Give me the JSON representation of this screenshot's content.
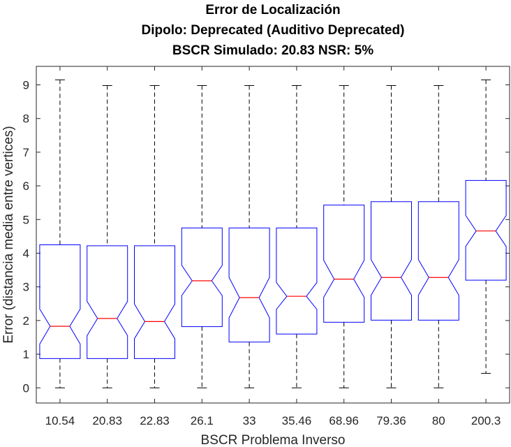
{
  "chart_data": {
    "type": "boxplot",
    "title": [
      "Error de Localización",
      "Dipolo: Deprecated (Auditivo Deprecated)",
      "BSCR Simulado: 20.83 NSR: 5%"
    ],
    "xlabel": "BSCR Problema Inverso",
    "ylabel": "Error (distancia media entre vertices)",
    "categories": [
      "10.54",
      "20.83",
      "22.83",
      "26.1",
      "33",
      "35.46",
      "68.96",
      "79.36",
      "80",
      "200.3"
    ],
    "ylim": [
      -0.45,
      9.55
    ],
    "yticks": [
      0,
      1,
      2,
      3,
      4,
      5,
      6,
      7,
      8,
      9
    ],
    "grid": false,
    "notched": true,
    "box_color": "#0000ff",
    "median_color": "#ff0000",
    "whisker_color": "#000000",
    "boxes": [
      {
        "min": 0.0,
        "q1": 0.87,
        "median": 1.83,
        "q3": 4.25,
        "max": 9.15,
        "notch_low": 1.3,
        "notch_high": 2.34
      },
      {
        "min": 0.0,
        "q1": 0.87,
        "median": 2.06,
        "q3": 4.22,
        "max": 8.98,
        "notch_low": 1.55,
        "notch_high": 2.57
      },
      {
        "min": 0.0,
        "q1": 0.87,
        "median": 1.97,
        "q3": 4.22,
        "max": 8.98,
        "notch_low": 1.46,
        "notch_high": 2.49
      },
      {
        "min": 0.0,
        "q1": 1.82,
        "median": 3.18,
        "q3": 4.75,
        "max": 8.98,
        "notch_low": 2.74,
        "notch_high": 3.64
      },
      {
        "min": 0.0,
        "q1": 1.36,
        "median": 2.68,
        "q3": 4.75,
        "max": 8.98,
        "notch_low": 2.08,
        "notch_high": 3.28
      },
      {
        "min": 0.0,
        "q1": 1.6,
        "median": 2.72,
        "q3": 4.75,
        "max": 8.98,
        "notch_low": 2.33,
        "notch_high": 3.13
      },
      {
        "min": 0.0,
        "q1": 1.95,
        "median": 3.23,
        "q3": 5.43,
        "max": 8.98,
        "notch_low": 2.69,
        "notch_high": 3.79
      },
      {
        "min": 0.0,
        "q1": 2.01,
        "median": 3.28,
        "q3": 5.53,
        "max": 8.98,
        "notch_low": 2.75,
        "notch_high": 3.81
      },
      {
        "min": 0.0,
        "q1": 2.01,
        "median": 3.28,
        "q3": 5.53,
        "max": 8.98,
        "notch_low": 2.75,
        "notch_high": 3.81
      },
      {
        "min": 0.43,
        "q1": 3.2,
        "median": 4.66,
        "q3": 6.16,
        "max": 9.15,
        "notch_low": 4.2,
        "notch_high": 5.12
      }
    ]
  }
}
